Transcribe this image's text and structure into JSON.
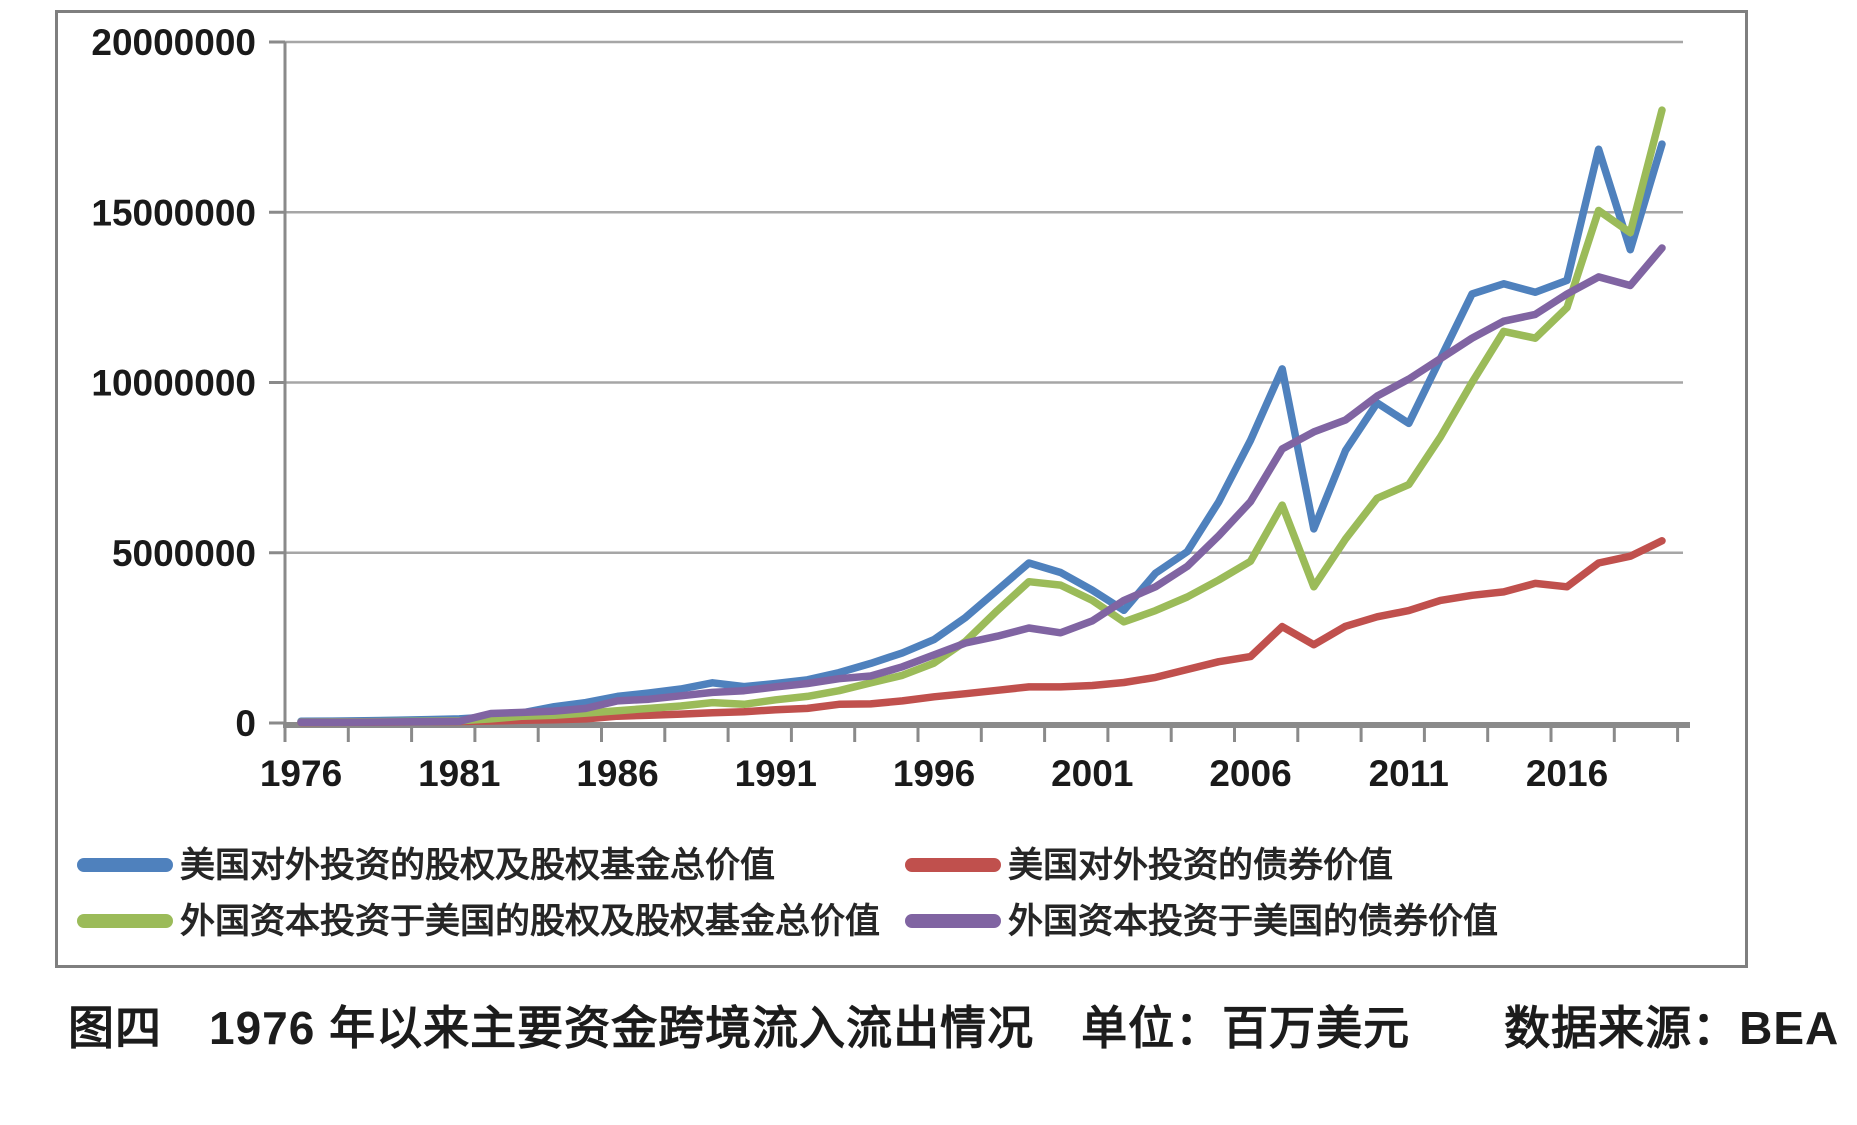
{
  "figure": {
    "caption": "图四　1976 年以来主要资金跨境流入流出情况　单位：百万美元　　数据来源：BEA"
  },
  "chart_data": {
    "type": "line",
    "title": "",
    "xlabel": "",
    "ylabel": "",
    "unit": "百万美元",
    "source": "BEA",
    "grid": true,
    "legend_position": "bottom",
    "ylim": [
      0,
      20000000
    ],
    "y_ticks": [
      0,
      5000000,
      10000000,
      15000000,
      20000000
    ],
    "y_tick_labels": [
      "0",
      "5000000",
      "10000000",
      "15000000",
      "20000000"
    ],
    "x": [
      1976,
      1977,
      1978,
      1979,
      1980,
      1981,
      1982,
      1983,
      1984,
      1985,
      1986,
      1987,
      1988,
      1989,
      1990,
      1991,
      1992,
      1993,
      1994,
      1995,
      1996,
      1997,
      1998,
      1999,
      2000,
      2001,
      2002,
      2003,
      2004,
      2005,
      2006,
      2007,
      2008,
      2009,
      2010,
      2011,
      2012,
      2013,
      2014,
      2015,
      2016,
      2017,
      2018,
      2019
    ],
    "x_tick_labels": [
      "1976",
      "1981",
      "1986",
      "1991",
      "1996",
      "2001",
      "2006",
      "2011",
      "2016"
    ],
    "x_label_interval": 5,
    "series": [
      {
        "name": "美国对外投资的股权及股权基金总价值",
        "color": "#4F81BD",
        "values": [
          50000,
          55000,
          65000,
          80000,
          100000,
          120000,
          180000,
          300000,
          480000,
          600000,
          780000,
          880000,
          1000000,
          1180000,
          1070000,
          1160000,
          1270000,
          1480000,
          1750000,
          2060000,
          2450000,
          3100000,
          3900000,
          4700000,
          4420000,
          3900000,
          3310000,
          4400000,
          5030000,
          6500000,
          8300000,
          10400000,
          5700000,
          8000000,
          9400000,
          8800000,
          10700000,
          12600000,
          12900000,
          12650000,
          13000000,
          16850000,
          13900000,
          17000000
        ]
      },
      {
        "name": "美国对外投资的债券价值",
        "color": "#C0504D",
        "values": [
          15000,
          18000,
          22000,
          28000,
          35000,
          45000,
          60000,
          80000,
          95000,
          120000,
          200000,
          230000,
          260000,
          300000,
          330000,
          390000,
          430000,
          550000,
          560000,
          650000,
          770000,
          860000,
          960000,
          1060000,
          1060000,
          1100000,
          1190000,
          1340000,
          1570000,
          1800000,
          1950000,
          2830000,
          2300000,
          2840000,
          3120000,
          3300000,
          3600000,
          3750000,
          3850000,
          4100000,
          4000000,
          4700000,
          4900000,
          5350000
        ]
      },
      {
        "name": "外国资本投资于美国的股权及股权基金总价值",
        "color": "#9BBB59",
        "values": [
          30000,
          33000,
          38000,
          45000,
          55000,
          65000,
          120000,
          200000,
          230000,
          290000,
          360000,
          430000,
          500000,
          600000,
          550000,
          680000,
          780000,
          950000,
          1180000,
          1400000,
          1760000,
          2400000,
          3300000,
          4150000,
          4050000,
          3600000,
          2970000,
          3300000,
          3700000,
          4200000,
          4750000,
          6400000,
          4000000,
          5400000,
          6600000,
          7000000,
          8400000,
          10000000,
          11500000,
          11300000,
          12200000,
          15050000,
          14400000,
          18000000
        ]
      },
      {
        "name": "外国资本投资于美国的债券价值",
        "color": "#8064A2",
        "values": [
          20000,
          22000,
          26000,
          32000,
          40000,
          50000,
          280000,
          310000,
          350000,
          430000,
          650000,
          700000,
          800000,
          900000,
          950000,
          1060000,
          1160000,
          1300000,
          1380000,
          1650000,
          2000000,
          2350000,
          2550000,
          2790000,
          2650000,
          3000000,
          3600000,
          4000000,
          4600000,
          5500000,
          6500000,
          8050000,
          8550000,
          8900000,
          9600000,
          10100000,
          10700000,
          11300000,
          11800000,
          12000000,
          12600000,
          13100000,
          12850000,
          13950000
        ]
      }
    ]
  }
}
